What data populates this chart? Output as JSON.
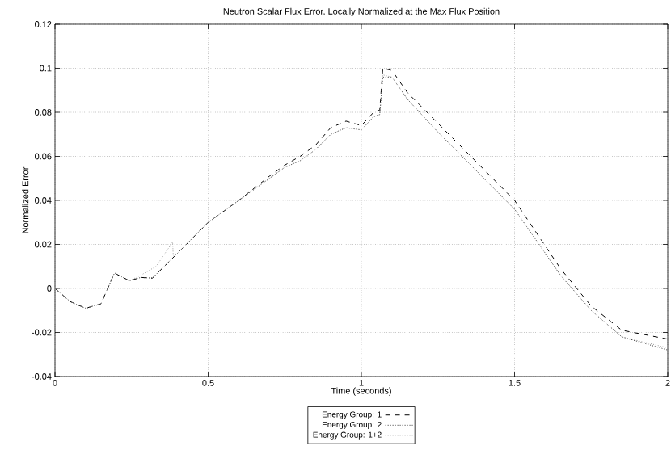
{
  "chart_data": {
    "type": "line",
    "title": "Neutron Scalar Flux Error, Locally Normalized at the Max Flux Position",
    "xlabel": "Time (seconds)",
    "ylabel": "Normalized Error",
    "xlim": [
      0,
      2
    ],
    "ylim": [
      -0.04,
      0.12
    ],
    "xticks": [
      0,
      0.5,
      1,
      1.5,
      2
    ],
    "yticks": [
      -0.04,
      -0.02,
      0,
      0.02,
      0.04,
      0.06,
      0.08,
      0.1,
      0.12
    ],
    "grid": true,
    "legend": "bottom",
    "marker": "none",
    "series": [
      {
        "name": "Energy Group: 1",
        "color": "#000000",
        "line_style": "dashed",
        "x": [
          0,
          0.05,
          0.1,
          0.15,
          0.194,
          0.243,
          0.28,
          0.318,
          0.4,
          0.5,
          0.6,
          0.7,
          0.75,
          0.8,
          0.85,
          0.9,
          0.95,
          1.0,
          1.04,
          1.06,
          1.07,
          1.1,
          1.15,
          1.25,
          1.35,
          1.5,
          1.65,
          1.75,
          1.85,
          2.0
        ],
        "values": [
          0,
          -0.006,
          -0.009,
          -0.007,
          0.007,
          0.0035,
          0.005,
          0.0047,
          0.016,
          0.03,
          0.04,
          0.051,
          0.056,
          0.06,
          0.065,
          0.073,
          0.076,
          0.074,
          0.08,
          0.081,
          0.1,
          0.099,
          0.089,
          0.075,
          0.061,
          0.04,
          0.009,
          -0.008,
          -0.019,
          -0.023
        ]
      },
      {
        "name": "Energy Group: 2",
        "color": "#333333",
        "line_style": "dotted",
        "x": [
          0,
          0.05,
          0.1,
          0.15,
          0.194,
          0.243,
          0.28,
          0.318,
          0.4,
          0.5,
          0.6,
          0.7,
          0.75,
          0.8,
          0.85,
          0.9,
          0.95,
          1.0,
          1.04,
          1.06,
          1.07,
          1.1,
          1.15,
          1.25,
          1.35,
          1.5,
          1.65,
          1.75,
          1.85,
          2.0
        ],
        "values": [
          0,
          -0.006,
          -0.009,
          -0.007,
          0.007,
          0.0035,
          0.005,
          0.0047,
          0.016,
          0.03,
          0.04,
          0.05,
          0.055,
          0.058,
          0.063,
          0.07,
          0.073,
          0.072,
          0.078,
          0.079,
          0.096,
          0.096,
          0.086,
          0.071,
          0.057,
          0.036,
          0.006,
          -0.01,
          -0.022,
          -0.028
        ]
      },
      {
        "name": "Energy Group: 1+2",
        "color": "#999999",
        "line_style": "dotted",
        "x": [
          0,
          0.05,
          0.1,
          0.15,
          0.194,
          0.243,
          0.28,
          0.33,
          0.384,
          0.386,
          0.4,
          0.5,
          0.6,
          0.7,
          0.75,
          0.8,
          0.85,
          0.9,
          0.95,
          1.0,
          1.04,
          1.06,
          1.07,
          1.1,
          1.15,
          1.25,
          1.35,
          1.5,
          1.65,
          1.75,
          1.85,
          2.0
        ],
        "values": [
          0,
          -0.006,
          -0.009,
          -0.007,
          0.007,
          0.0035,
          0.006,
          0.01,
          0.021,
          0.015,
          0.016,
          0.03,
          0.04,
          0.05,
          0.055,
          0.058,
          0.063,
          0.07,
          0.073,
          0.072,
          0.078,
          0.079,
          0.097,
          0.096,
          0.086,
          0.071,
          0.057,
          0.036,
          0.006,
          -0.01,
          -0.022,
          -0.027
        ]
      }
    ]
  }
}
